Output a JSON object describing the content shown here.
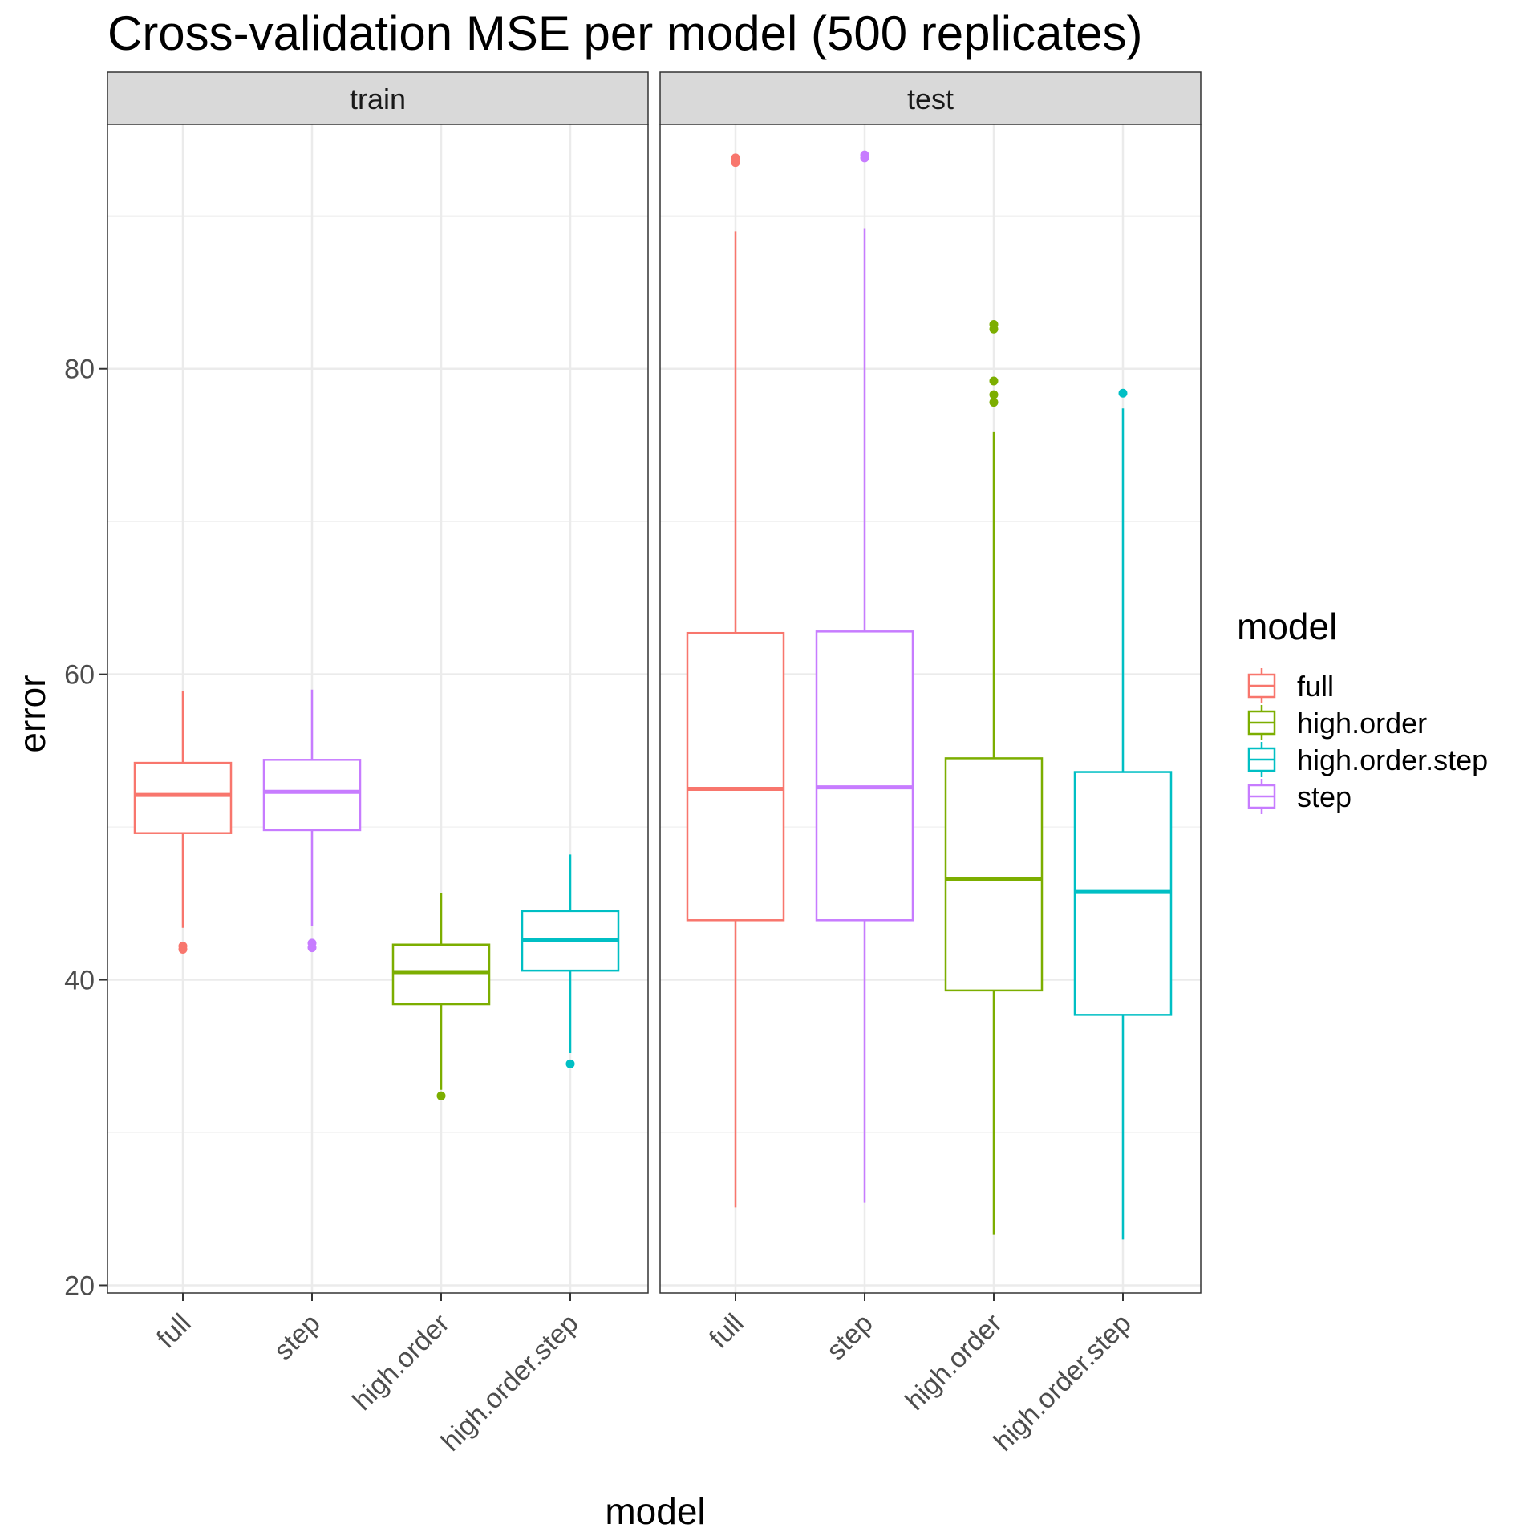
{
  "chart_data": {
    "type": "boxplot",
    "title": "Cross-validation MSE per model (500 replicates)",
    "xlabel": "model",
    "ylabel": "error",
    "ylim": [
      19.5,
      96
    ],
    "yticks": [
      20,
      40,
      60,
      80
    ],
    "grid": true,
    "legend": {
      "title": "model",
      "placement": "right",
      "entries": [
        "full",
        "high.order",
        "high.order.step",
        "step"
      ]
    },
    "colors": {
      "full": "#F8766D",
      "high.order": "#7CAE00",
      "high.order.step": "#00BFC4",
      "step": "#C77CFF"
    },
    "categories": [
      "full",
      "step",
      "high.order",
      "high.order.step"
    ],
    "facets": [
      {
        "name": "train",
        "boxes": [
          {
            "model": "full",
            "whisker_low": 43.4,
            "q1": 49.6,
            "median": 52.1,
            "q3": 54.2,
            "whisker_high": 58.9,
            "outliers": [
              42.0,
              42.2
            ]
          },
          {
            "model": "step",
            "whisker_low": 43.5,
            "q1": 49.8,
            "median": 52.3,
            "q3": 54.4,
            "whisker_high": 59.0,
            "outliers": [
              42.1,
              42.4
            ]
          },
          {
            "model": "high.order",
            "whisker_low": 32.8,
            "q1": 38.4,
            "median": 40.5,
            "q3": 42.3,
            "whisker_high": 45.7,
            "outliers": [
              32.4
            ]
          },
          {
            "model": "high.order.step",
            "whisker_low": 35.2,
            "q1": 40.6,
            "median": 42.6,
            "q3": 44.5,
            "whisker_high": 48.2,
            "outliers": [
              34.5
            ]
          }
        ]
      },
      {
        "name": "test",
        "boxes": [
          {
            "model": "full",
            "whisker_low": 25.1,
            "q1": 43.9,
            "median": 52.5,
            "q3": 62.7,
            "whisker_high": 89.0,
            "outliers": [
              93.5,
              93.8
            ]
          },
          {
            "model": "step",
            "whisker_low": 25.4,
            "q1": 43.9,
            "median": 52.6,
            "q3": 62.8,
            "whisker_high": 89.2,
            "outliers": [
              93.8,
              94.0
            ]
          },
          {
            "model": "high.order",
            "whisker_low": 23.3,
            "q1": 39.3,
            "median": 46.6,
            "q3": 54.5,
            "whisker_high": 75.9,
            "outliers": [
              77.8,
              78.3,
              79.2,
              82.6,
              82.9
            ]
          },
          {
            "model": "high.order.step",
            "whisker_low": 23.0,
            "q1": 37.7,
            "median": 45.8,
            "q3": 53.6,
            "whisker_high": 77.4,
            "outliers": [
              78.4
            ]
          }
        ]
      }
    ]
  }
}
